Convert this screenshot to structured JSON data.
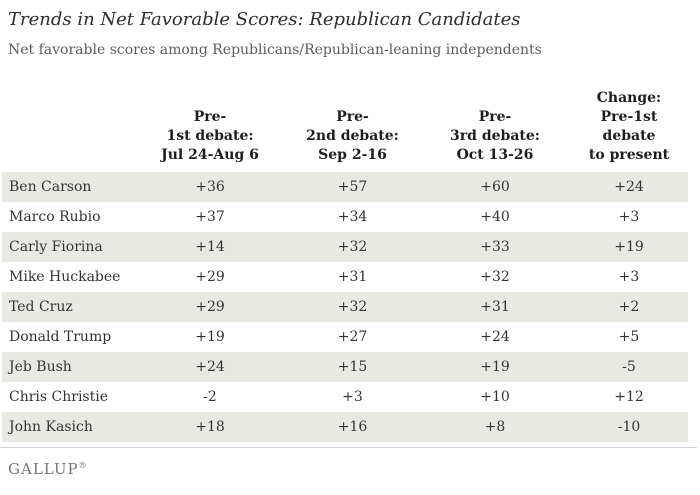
{
  "chart_data": {
    "type": "table",
    "title": "Trends in Net Favorable Scores: Republican Candidates",
    "subtitle": "Net favorable scores among Republicans/Republican-leaning independents",
    "columns": [
      "",
      "Pre-\n1st debate:\nJul 24-Aug 6",
      "Pre-\n2nd debate:\nSep 2-16",
      "Pre-\n3rd debate:\nOct 13-26",
      "Change:\nPre-1st\ndebate\nto present"
    ],
    "rows": [
      {
        "name": "Ben Carson",
        "values": [
          "+36",
          "+57",
          "+60",
          "+24"
        ]
      },
      {
        "name": "Marco Rubio",
        "values": [
          "+37",
          "+34",
          "+40",
          "+3"
        ]
      },
      {
        "name": "Carly Fiorina",
        "values": [
          "+14",
          "+32",
          "+33",
          "+19"
        ]
      },
      {
        "name": "Mike Huckabee",
        "values": [
          "+29",
          "+31",
          "+32",
          "+3"
        ]
      },
      {
        "name": "Ted Cruz",
        "values": [
          "+29",
          "+32",
          "+31",
          "+2"
        ]
      },
      {
        "name": "Donald Trump",
        "values": [
          "+19",
          "+27",
          "+24",
          "+5"
        ]
      },
      {
        "name": "Jeb Bush",
        "values": [
          "+24",
          "+15",
          "+19",
          "-5"
        ]
      },
      {
        "name": "Chris Christie",
        "values": [
          "-2",
          "+3",
          "+10",
          "+12"
        ]
      },
      {
        "name": "John Kasich",
        "values": [
          "+18",
          "+16",
          "+8",
          "-10"
        ]
      }
    ],
    "layout": {
      "row_striping": "odd rows shaded",
      "value_alignment": "center",
      "name_alignment": "left"
    }
  },
  "footer": {
    "brand": "GALLUP",
    "trademark": "®"
  },
  "colors": {
    "row_stripe": "#e9e9e4",
    "title_text": "#2e2e2e",
    "subtitle_text": "#5c5c5c",
    "body_text": "#333333",
    "brand_text": "#757575",
    "divider": "#d2d2d2"
  }
}
